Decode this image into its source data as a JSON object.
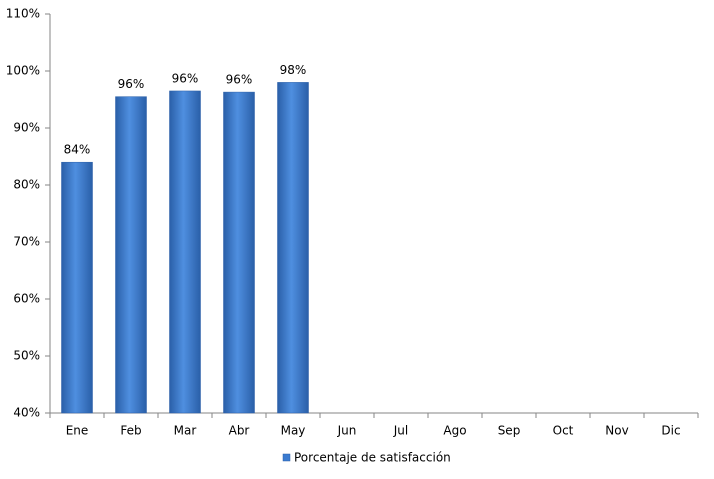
{
  "chart_data": {
    "type": "bar",
    "categories": [
      "Ene",
      "Feb",
      "Mar",
      "Abr",
      "May",
      "Jun",
      "Jul",
      "Ago",
      "Sep",
      "Oct",
      "Nov",
      "Dic"
    ],
    "series": [
      {
        "name": "Porcentaje de satisfacción",
        "color": "#3b7bd0",
        "values": [
          84,
          95.5,
          96.5,
          96.3,
          98,
          null,
          null,
          null,
          null,
          null,
          null,
          null
        ],
        "value_labels": [
          "84%",
          "96%",
          "96%",
          "96%",
          "98%",
          null,
          null,
          null,
          null,
          null,
          null,
          null
        ]
      }
    ],
    "ylim": [
      40,
      110
    ],
    "yticks": [
      {
        "value": 40,
        "label": "40%"
      },
      {
        "value": 50,
        "label": "50%"
      },
      {
        "value": 60,
        "label": "60%"
      },
      {
        "value": 70,
        "label": "70%"
      },
      {
        "value": 80,
        "label": "80%"
      },
      {
        "value": 90,
        "label": "90%"
      },
      {
        "value": 100,
        "label": "100%"
      },
      {
        "value": 110,
        "label": "110%"
      }
    ],
    "grid": false,
    "legend": "bottom"
  }
}
